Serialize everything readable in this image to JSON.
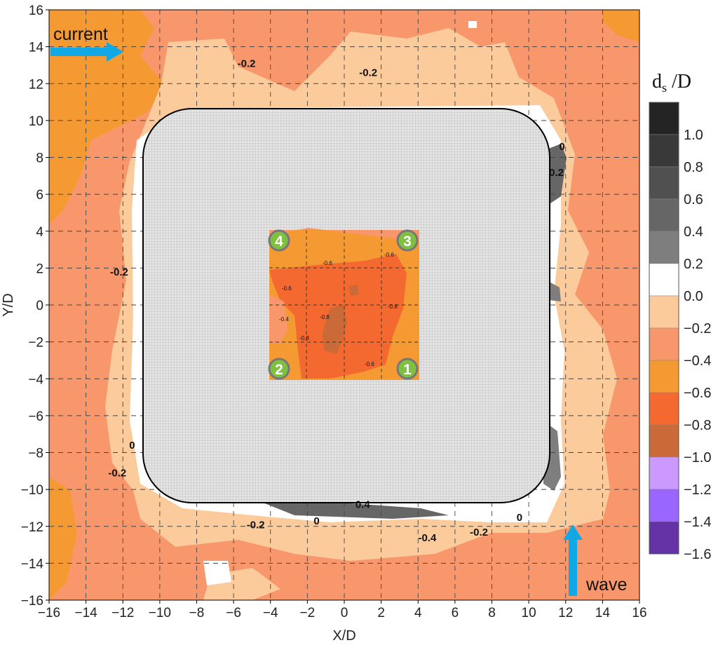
{
  "colors": {
    "level_0": "#ffffff",
    "level_m02": "#fccb9b",
    "level_m04": "#f8976c",
    "level_m06": "#f59a33",
    "level_m08": "#f4692f",
    "level_m10": "#c96a38",
    "level_p02": "#7e7e7e",
    "current_arrow": "#11a8e6",
    "wave_arrow": "#11a8e6",
    "marker_fill": "#7fc043",
    "marker_ring": "#777777",
    "structure_fill": "#d9d9d9"
  },
  "annotations": {
    "current_label": "current",
    "wave_label": "wave"
  },
  "markers": [
    "1",
    "2",
    "3",
    "4"
  ],
  "chart_data": {
    "type": "heatmap",
    "xlabel": "X/D",
    "ylabel": "Y/D",
    "xlim": [
      -16,
      16
    ],
    "ylim": [
      -16,
      16
    ],
    "x_ticks": [
      -16,
      -14,
      -12,
      -10,
      -8,
      -6,
      -4,
      -2,
      0,
      2,
      4,
      6,
      8,
      10,
      12,
      14,
      16
    ],
    "y_ticks": [
      16,
      14,
      12,
      10,
      8,
      6,
      4,
      2,
      0,
      -2,
      -4,
      -6,
      -8,
      -10,
      -12,
      -14,
      -16
    ],
    "grid": "dashed",
    "colorbar": {
      "title": "d",
      "title_sub": "s",
      "title_suffix": " /D",
      "levels": [
        "1.0",
        "0.8",
        "0.6",
        "0.4",
        "0.2",
        "0.0",
        "-0.2",
        "-0.4",
        "-0.6",
        "-0.8",
        "-1.0",
        "-1.2",
        "-1.4",
        "-1.6"
      ],
      "band_colors": [
        "#242424",
        "#393939",
        "#505050",
        "#666666",
        "#7e7e7e",
        "#ffffff",
        "#fccb9b",
        "#f8976c",
        "#f59a33",
        "#f4692f",
        "#c96a38",
        "#cc99ff",
        "#9966ff",
        "#6633a6"
      ]
    },
    "contour_labels": [
      {
        "text": "-0.2",
        "x": -5.3,
        "y": 12.9
      },
      {
        "text": "-0.2",
        "x": 1.3,
        "y": 12.4
      },
      {
        "text": "0",
        "x": 11.8,
        "y": 8.4
      },
      {
        "text": "0.2",
        "x": 11.5,
        "y": 7.0
      },
      {
        "text": "-0.2",
        "x": -12.2,
        "y": 1.6
      },
      {
        "text": "0",
        "x": -11.5,
        "y": -7.8
      },
      {
        "text": "-0.2",
        "x": -12.3,
        "y": -9.3
      },
      {
        "text": "0.4",
        "x": 1.0,
        "y": -11.0
      },
      {
        "text": "0",
        "x": -1.5,
        "y": -11.9
      },
      {
        "text": "-0.2",
        "x": -4.8,
        "y": -12.1
      },
      {
        "text": "-0.4",
        "x": 4.5,
        "y": -12.8
      },
      {
        "text": "-0.2",
        "x": 7.3,
        "y": -12.5
      },
      {
        "text": "0",
        "x": 9.5,
        "y": -11.7
      }
    ],
    "inner_contour_labels": [
      "-0.6",
      "-0.6",
      "-0.6",
      "-0.4",
      "-0.8",
      "-0.8",
      "-0.8",
      "-0.6"
    ]
  }
}
